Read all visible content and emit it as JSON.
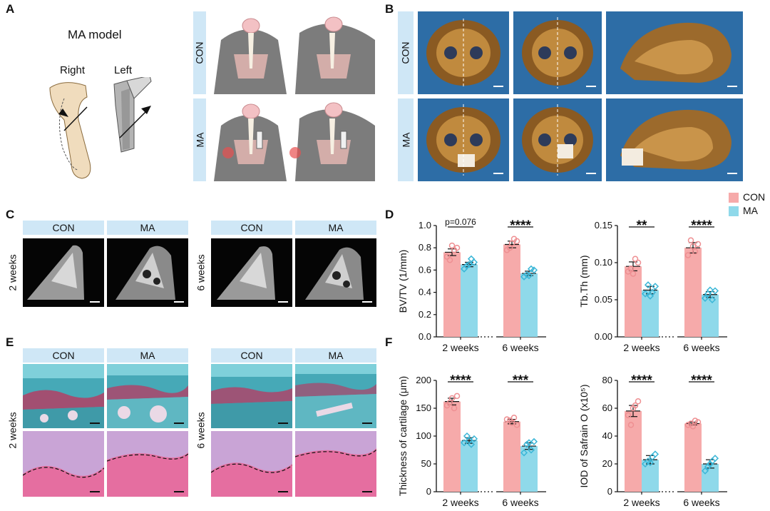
{
  "panels": {
    "A": "A",
    "B": "B",
    "C": "C",
    "D": "D",
    "E": "E",
    "F": "F"
  },
  "panel_a": {
    "title": "MA model",
    "right": "Right",
    "left": "Left",
    "row_con": "CON",
    "row_ma": "MA"
  },
  "panel_b": {
    "row_con": "CON",
    "row_ma": "MA"
  },
  "panel_c": {
    "col_con": "CON",
    "col_ma": "MA",
    "row_2w": "2 weeks",
    "row_6w": "6 weeks"
  },
  "panel_e": {
    "col_con": "CON",
    "col_ma": "MA",
    "row_2w": "2 weeks",
    "row_6w": "6 weeks"
  },
  "legend": {
    "con": "CON",
    "ma": "MA"
  },
  "colors": {
    "con": "#f6aaaa",
    "ma": "#8fd9ea",
    "con_point": "#ee8f92",
    "ma_point": "#3ab6d7",
    "label_bg": "#cfe7f6",
    "ct_bg": "#2d6da6"
  },
  "chart_data": [
    {
      "type": "bar",
      "categories": [
        "2 weeks",
        "6 weeks"
      ],
      "series": [
        {
          "name": "CON",
          "values": [
            0.76,
            0.83
          ],
          "sem": [
            0.03,
            0.03
          ],
          "points": [
            [
              0.72,
              0.8,
              0.69,
              0.78,
              0.82
            ],
            [
              0.78,
              0.86,
              0.8,
              0.88,
              0.84
            ]
          ]
        },
        {
          "name": "MA",
          "values": [
            0.65,
            0.57
          ],
          "sem": [
            0.02,
            0.02
          ],
          "points": [
            [
              0.61,
              0.67,
              0.64,
              0.7,
              0.65
            ],
            [
              0.54,
              0.6,
              0.56,
              0.61,
              0.55
            ]
          ]
        }
      ],
      "ylabel": "BV/TV (1/mm)",
      "ylim": [
        0,
        1.0
      ],
      "yticks": [
        "0.0",
        "0.2",
        "0.4",
        "0.6",
        "0.8",
        "1.0"
      ],
      "annotations": [
        "p=0.076",
        "****"
      ]
    },
    {
      "type": "bar",
      "categories": [
        "2 weeks",
        "6 weeks"
      ],
      "series": [
        {
          "name": "CON",
          "values": [
            0.095,
            0.12
          ],
          "sem": [
            0.006,
            0.007
          ],
          "points": [
            [
              0.088,
              0.1,
              0.092,
              0.105,
              0.085
            ],
            [
              0.11,
              0.125,
              0.13,
              0.115,
              0.122
            ]
          ]
        },
        {
          "name": "MA",
          "values": [
            0.063,
            0.057
          ],
          "sem": [
            0.005,
            0.004
          ],
          "points": [
            [
              0.058,
              0.068,
              0.07,
              0.06,
              0.055
            ],
            [
              0.052,
              0.062,
              0.058,
              0.05,
              0.063
            ]
          ]
        }
      ],
      "ylabel": "Tb.Th (mm)",
      "ylim": [
        0,
        0.15
      ],
      "yticks": [
        "0.00",
        "0.05",
        "0.10",
        "0.15"
      ],
      "annotations": [
        "**",
        "****"
      ]
    },
    {
      "type": "bar",
      "categories": [
        "2 weeks",
        "6 weeks"
      ],
      "series": [
        {
          "name": "CON",
          "values": [
            162,
            126
          ],
          "sem": [
            6,
            4
          ],
          "points": [
            [
              155,
              172,
              160,
              150,
              168
            ],
            [
              130,
              120,
              128,
              133,
              124
            ]
          ]
        },
        {
          "name": "MA",
          "values": [
            92,
            82
          ],
          "sem": [
            5,
            6
          ],
          "points": [
            [
              88,
              95,
              100,
              85,
              92
            ],
            [
              70,
              90,
              85,
              75,
              88
            ]
          ]
        }
      ],
      "ylabel": "Thickness of cartilage (μm)",
      "ylim": [
        0,
        200
      ],
      "yticks": [
        "0",
        "50",
        "100",
        "150",
        "200"
      ],
      "annotations": [
        "****",
        "***"
      ]
    },
    {
      "type": "bar",
      "categories": [
        "2 weeks",
        "6 weeks"
      ],
      "series": [
        {
          "name": "CON",
          "values": [
            58,
            49
          ],
          "sem": [
            4,
            1
          ],
          "points": [
            [
              55,
              65,
              48,
              62,
              60
            ],
            [
              48,
              50,
              49,
              51,
              47
            ]
          ]
        },
        {
          "name": "MA",
          "values": [
            23,
            20
          ],
          "sem": [
            3,
            3
          ],
          "points": [
            [
              20,
              27,
              22,
              25,
              21
            ],
            [
              15,
              24,
              18,
              22,
              20
            ]
          ]
        }
      ],
      "ylabel": "IOD of Safrain O (x10⁵)",
      "ylim": [
        0,
        80
      ],
      "yticks": [
        "0",
        "20",
        "40",
        "60",
        "80"
      ],
      "annotations": [
        "****",
        "****"
      ]
    }
  ]
}
